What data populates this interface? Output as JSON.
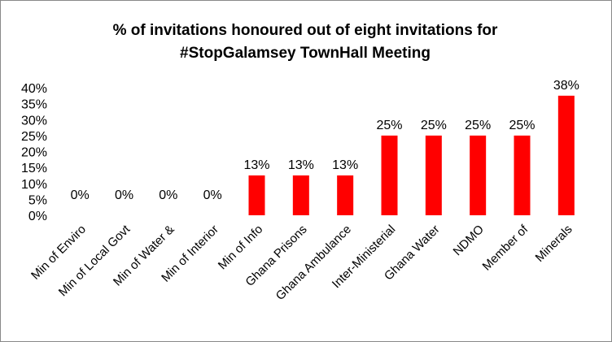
{
  "chart_data": {
    "type": "bar",
    "title_line1": "% of invitations honoured out of eight invitations for",
    "title_line2": "#StopGalamsey TownHall Meeting",
    "categories": [
      "Min of Enviro",
      "Min of Local Govt",
      "Min of Water &",
      "Min of Interior",
      "Min of Info",
      "Ghana Prisons",
      "Ghana Ambulance",
      "Inter-Ministerial",
      "Ghana Water",
      "NDMO",
      "Member of",
      "Minerals"
    ],
    "values": [
      0,
      0,
      0,
      0,
      12.5,
      12.5,
      12.5,
      25,
      25,
      25,
      25,
      37.5
    ],
    "data_labels": [
      "0%",
      "0%",
      "0%",
      "0%",
      "13%",
      "13%",
      "13%",
      "25%",
      "25%",
      "25%",
      "25%",
      "38%"
    ],
    "y_ticks": [
      "0%",
      "5%",
      "10%",
      "15%",
      "20%",
      "25%",
      "30%",
      "35%",
      "40%"
    ],
    "ylim": [
      0,
      40
    ],
    "xlabel": "",
    "ylabel": "",
    "grid": false,
    "legend": "none",
    "bar_color": "#ff0000"
  }
}
